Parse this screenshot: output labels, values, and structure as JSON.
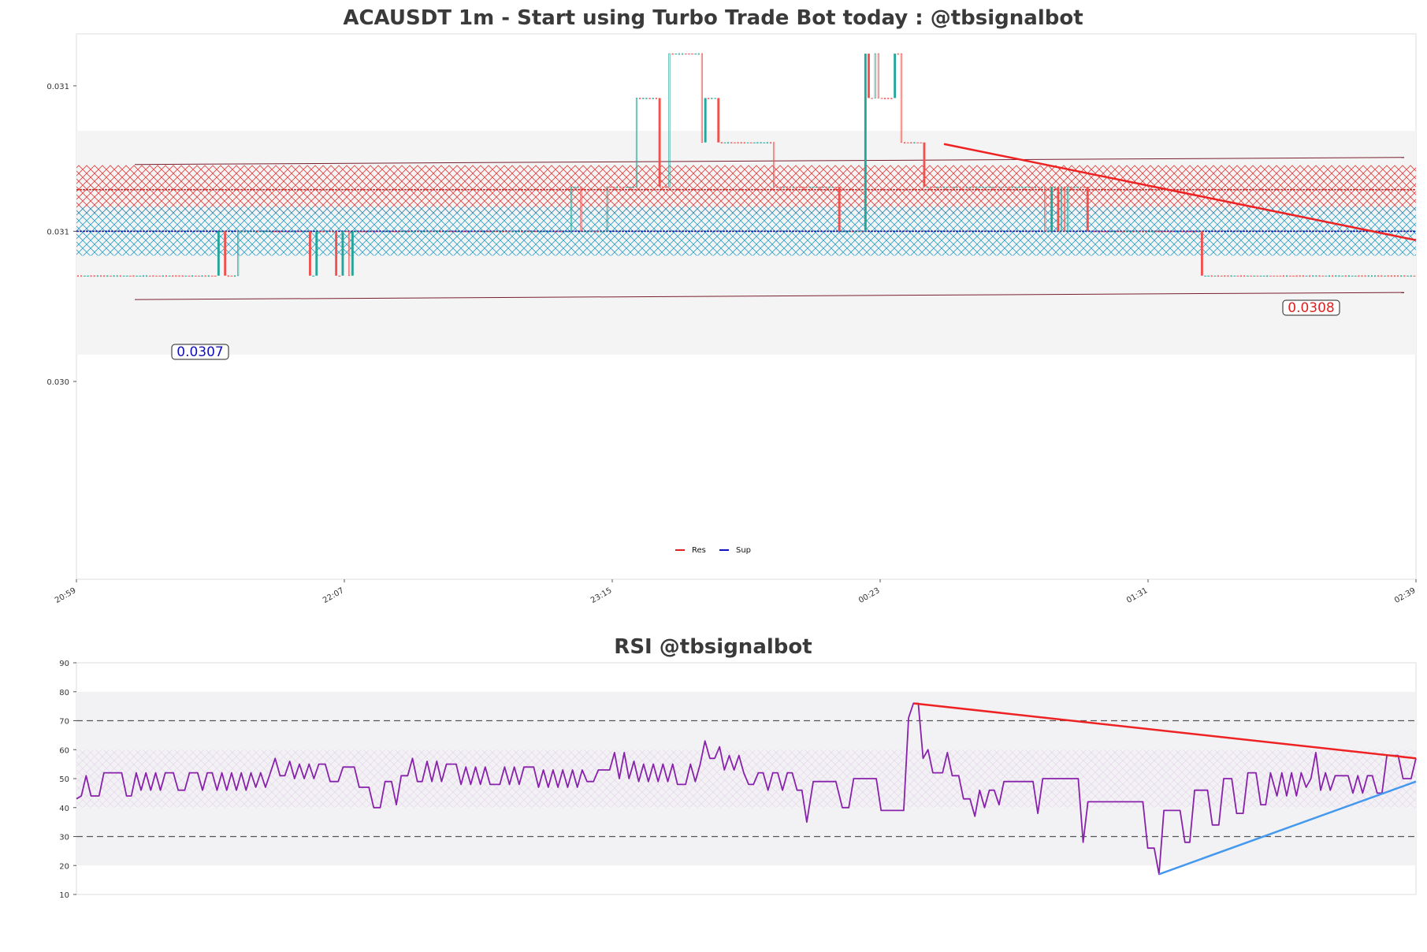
{
  "chart_data": [
    {
      "type": "candlestick",
      "title": "ACAUSDT 1m - Start using Turbo Trade Bot today : @tbsignalbot",
      "y_ticks": [
        "0.031",
        "0.031",
        "0.030"
      ],
      "x_ticks": [
        "20:59",
        "22:07",
        "23:15",
        "00:23",
        "01:31",
        "02:39"
      ],
      "ylim": [
        0.03005,
        0.0311
      ],
      "price_levels": {
        "upper_band": 0.03085,
        "lower_band": 0.03059,
        "resistance": 0.0308,
        "support": 0.03072,
        "step": 8.55e-05
      },
      "resistance_label": "0.0308",
      "support_label": "0.0307",
      "legend": [
        {
          "name": "Res",
          "color": "#e02020"
        },
        {
          "name": "Sup",
          "color": "#1010c0"
        }
      ],
      "colors": {
        "up": "#26a69a",
        "down": "#ef5350",
        "res": "#e02020",
        "sup": "#1010c0",
        "band_line": "#7a1e2e",
        "res_zone": "#e83a3a",
        "sup_zone": "#2aa0c8",
        "trend": "#ee2222",
        "panel": "#f4f4f4"
      }
    },
    {
      "type": "line",
      "title": "RSI @tbsignalbot",
      "y_ticks": [
        "90",
        "80",
        "70",
        "60",
        "50",
        "40",
        "30",
        "20",
        "10"
      ],
      "ylim": [
        10,
        90
      ],
      "levels": [
        70,
        30
      ],
      "bands": [
        [
          60,
          80
        ],
        [
          40,
          60
        ],
        [
          20,
          40
        ]
      ],
      "series_knots": [
        [
          0,
          43
        ],
        [
          3,
          44
        ],
        [
          6,
          51
        ],
        [
          9,
          44
        ],
        [
          14,
          44
        ],
        [
          17,
          52
        ],
        [
          28,
          52
        ],
        [
          31,
          44
        ],
        [
          34,
          44
        ],
        [
          37,
          52
        ],
        [
          40,
          46
        ],
        [
          43,
          52
        ],
        [
          46,
          46
        ],
        [
          49,
          52
        ],
        [
          52,
          46
        ],
        [
          55,
          52
        ],
        [
          60,
          52
        ],
        [
          63,
          46
        ],
        [
          67,
          46
        ],
        [
          70,
          52
        ],
        [
          75,
          52
        ],
        [
          78,
          46
        ],
        [
          81,
          52
        ],
        [
          84,
          52
        ],
        [
          87,
          46
        ],
        [
          90,
          52
        ],
        [
          93,
          46
        ],
        [
          96,
          52
        ],
        [
          99,
          46
        ],
        [
          102,
          52
        ],
        [
          105,
          46
        ],
        [
          108,
          52
        ],
        [
          111,
          47
        ],
        [
          114,
          52
        ],
        [
          117,
          47
        ],
        [
          120,
          52
        ],
        [
          123,
          57
        ],
        [
          126,
          51
        ],
        [
          129,
          51
        ],
        [
          132,
          56
        ],
        [
          135,
          50
        ],
        [
          138,
          55
        ],
        [
          141,
          50
        ],
        [
          144,
          55
        ],
        [
          147,
          50
        ],
        [
          150,
          55
        ],
        [
          154,
          55
        ],
        [
          157,
          49
        ],
        [
          162,
          49
        ],
        [
          165,
          54
        ],
        [
          172,
          54
        ],
        [
          175,
          47
        ],
        [
          181,
          47
        ],
        [
          184,
          40
        ],
        [
          188,
          40
        ],
        [
          191,
          49
        ],
        [
          195,
          49
        ],
        [
          198,
          41
        ],
        [
          201,
          51
        ],
        [
          205,
          51
        ],
        [
          208,
          57
        ],
        [
          211,
          49
        ],
        [
          214,
          49
        ],
        [
          217,
          56
        ],
        [
          220,
          49
        ],
        [
          223,
          56
        ],
        [
          226,
          49
        ],
        [
          229,
          55
        ],
        [
          235,
          55
        ],
        [
          238,
          48
        ],
        [
          241,
          54
        ],
        [
          244,
          48
        ],
        [
          247,
          54
        ],
        [
          250,
          48
        ],
        [
          253,
          54
        ],
        [
          256,
          48
        ],
        [
          262,
          48
        ],
        [
          265,
          54
        ],
        [
          268,
          48
        ],
        [
          271,
          54
        ],
        [
          274,
          48
        ],
        [
          277,
          54
        ],
        [
          283,
          54
        ],
        [
          286,
          47
        ],
        [
          289,
          53
        ],
        [
          292,
          47
        ],
        [
          295,
          53
        ],
        [
          298,
          47
        ],
        [
          301,
          53
        ],
        [
          304,
          47
        ],
        [
          307,
          53
        ],
        [
          310,
          47
        ],
        [
          313,
          53
        ],
        [
          316,
          49
        ],
        [
          320,
          49
        ],
        [
          323,
          53
        ],
        [
          330,
          53
        ],
        [
          333,
          59
        ],
        [
          336,
          50
        ],
        [
          339,
          59
        ],
        [
          342,
          50
        ],
        [
          345,
          56
        ],
        [
          348,
          49
        ],
        [
          351,
          55
        ],
        [
          354,
          49
        ],
        [
          357,
          55
        ],
        [
          360,
          49
        ],
        [
          363,
          55
        ],
        [
          366,
          49
        ],
        [
          369,
          55
        ],
        [
          372,
          48
        ],
        [
          377,
          48
        ],
        [
          380,
          55
        ],
        [
          383,
          49
        ],
        [
          386,
          55
        ],
        [
          389,
          63
        ],
        [
          392,
          57
        ],
        [
          395,
          57
        ],
        [
          398,
          61
        ],
        [
          401,
          53
        ],
        [
          404,
          58
        ],
        [
          407,
          53
        ],
        [
          410,
          58
        ],
        [
          413,
          52
        ],
        [
          416,
          48
        ],
        [
          419,
          48
        ],
        [
          422,
          52
        ],
        [
          425,
          52
        ],
        [
          428,
          46
        ],
        [
          431,
          52
        ],
        [
          434,
          52
        ],
        [
          437,
          46
        ],
        [
          440,
          52
        ],
        [
          443,
          52
        ],
        [
          446,
          46
        ],
        [
          449,
          46
        ],
        [
          452,
          35
        ],
        [
          456,
          49
        ],
        [
          470,
          49
        ],
        [
          474,
          40
        ],
        [
          478,
          40
        ],
        [
          481,
          50
        ],
        [
          495,
          50
        ],
        [
          498,
          39
        ],
        [
          512,
          39
        ],
        [
          515,
          71
        ],
        [
          518,
          76
        ],
        [
          521,
          76
        ],
        [
          524,
          57
        ],
        [
          527,
          60
        ],
        [
          530,
          52
        ],
        [
          536,
          52
        ],
        [
          539,
          59
        ],
        [
          542,
          51
        ],
        [
          546,
          51
        ],
        [
          549,
          43
        ],
        [
          553,
          43
        ],
        [
          556,
          37
        ],
        [
          559,
          46
        ],
        [
          562,
          40
        ],
        [
          565,
          46
        ],
        [
          568,
          46
        ],
        [
          571,
          41
        ],
        [
          574,
          49
        ],
        [
          592,
          49
        ],
        [
          595,
          38
        ],
        [
          598,
          50
        ],
        [
          620,
          50
        ],
        [
          623,
          28
        ],
        [
          626,
          42
        ],
        [
          660,
          42
        ],
        [
          663,
          26
        ],
        [
          667,
          26
        ],
        [
          670,
          17
        ],
        [
          673,
          39
        ],
        [
          683,
          39
        ],
        [
          686,
          28
        ],
        [
          689,
          28
        ],
        [
          692,
          46
        ],
        [
          700,
          46
        ],
        [
          703,
          34
        ],
        [
          707,
          34
        ],
        [
          710,
          50
        ],
        [
          715,
          50
        ],
        [
          718,
          38
        ],
        [
          722,
          38
        ],
        [
          725,
          52
        ],
        [
          730,
          52
        ],
        [
          733,
          41
        ],
        [
          736,
          41
        ],
        [
          739,
          52
        ],
        [
          743,
          44
        ],
        [
          746,
          52
        ],
        [
          749,
          44
        ],
        [
          752,
          52
        ],
        [
          755,
          44
        ],
        [
          758,
          52
        ],
        [
          761,
          47
        ],
        [
          764,
          50
        ],
        [
          767,
          59
        ],
        [
          770,
          46
        ],
        [
          773,
          52
        ],
        [
          776,
          46
        ],
        [
          779,
          51
        ],
        [
          787,
          51
        ],
        [
          790,
          45
        ],
        [
          793,
          51
        ],
        [
          796,
          45
        ],
        [
          799,
          51
        ],
        [
          802,
          51
        ],
        [
          805,
          45
        ],
        [
          808,
          45
        ],
        [
          811,
          58
        ],
        [
          818,
          58
        ],
        [
          821,
          50
        ],
        [
          826,
          50
        ],
        [
          829,
          57
        ]
      ],
      "n_points": 830,
      "trendlines": [
        {
          "from": [
            518,
            76
          ],
          "to": [
            829,
            57
          ],
          "color": "#ee2222"
        },
        {
          "from": [
            670,
            17
          ],
          "to": [
            829,
            49
          ],
          "color": "#4499ee"
        }
      ],
      "colors": {
        "line": "#8822aa",
        "level": "#555555",
        "band": "#f2f2f4"
      }
    }
  ]
}
